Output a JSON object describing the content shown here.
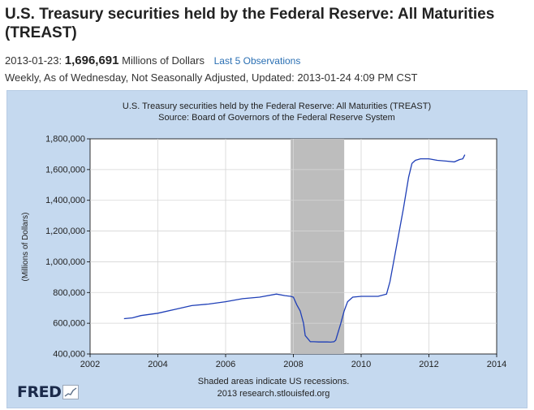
{
  "header": {
    "title": "U.S. Treasury securities held by the Federal Reserve: All Maturities (TREAST)",
    "obs_date": "2013-01-23:",
    "obs_value": "1,696,691",
    "obs_unit": "Millions of Dollars",
    "obs_link": "Last 5 Observations",
    "meta": "Weekly, As of Wednesday, Not Seasonally Adjusted, Updated: 2013-01-24 4:09 PM CST"
  },
  "chart_data": {
    "type": "line",
    "title": "U.S. Treasury securities held by the Federal Reserve: All Maturities (TREAST)",
    "subtitle": "Source: Board of Governors of the Federal Reserve System",
    "xlabel": "",
    "ylabel": "(Millions of Dollars)",
    "xlim": [
      2002,
      2014
    ],
    "ylim": [
      400000,
      1800000
    ],
    "x_ticks": [
      "2002",
      "2004",
      "2006",
      "2008",
      "2010",
      "2012",
      "2014"
    ],
    "y_ticks": [
      "400,000",
      "600,000",
      "800,000",
      "1,000,000",
      "1,200,000",
      "1,400,000",
      "1,600,000",
      "1,800,000"
    ],
    "grid": true,
    "recessions": [
      [
        2007.92,
        2009.5
      ]
    ],
    "footnote": "Shaded areas indicate US recessions.",
    "credit": "2013 research.stlouisfed.org",
    "logo": "FRED",
    "series": [
      {
        "x": [
          2003.0,
          2003.25,
          2003.5,
          2004.0,
          2004.5,
          2005.0,
          2005.5,
          2006.0,
          2006.5,
          2007.0,
          2007.5,
          2007.75,
          2007.92,
          2008.0,
          2008.1,
          2008.2,
          2008.3,
          2008.35,
          2008.5,
          2008.6,
          2008.75,
          2009.0,
          2009.1,
          2009.2,
          2009.25,
          2009.4,
          2009.5,
          2009.6,
          2009.75,
          2010.0,
          2010.5,
          2010.75,
          2010.85,
          2011.0,
          2011.25,
          2011.4,
          2011.5,
          2011.6,
          2011.75,
          2012.0,
          2012.25,
          2012.5,
          2012.75,
          2012.9,
          2013.0,
          2013.06
        ],
        "values": [
          630000,
          635000,
          650000,
          665000,
          690000,
          715000,
          725000,
          740000,
          760000,
          770000,
          790000,
          780000,
          775000,
          770000,
          720000,
          680000,
          600000,
          520000,
          480000,
          480000,
          478000,
          478000,
          477000,
          480000,
          490000,
          600000,
          680000,
          740000,
          770000,
          775000,
          775000,
          790000,
          870000,
          1050000,
          1350000,
          1550000,
          1640000,
          1660000,
          1670000,
          1670000,
          1660000,
          1655000,
          1650000,
          1665000,
          1670000,
          1696691
        ]
      }
    ]
  }
}
